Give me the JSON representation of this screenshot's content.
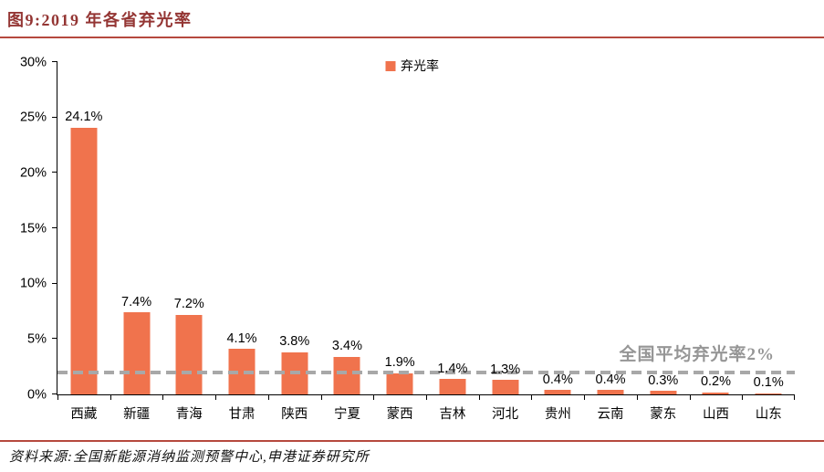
{
  "header": {
    "title": "图9:2019 年各省弃光率"
  },
  "chart_data": {
    "type": "bar",
    "title": "2019 年各省弃光率",
    "legend": "弃光率",
    "categories": [
      "西藏",
      "新疆",
      "青海",
      "甘肃",
      "陕西",
      "宁夏",
      "蒙西",
      "吉林",
      "河北",
      "贵州",
      "云南",
      "蒙东",
      "山西",
      "山东"
    ],
    "values": [
      24.1,
      7.4,
      7.2,
      4.1,
      3.8,
      3.4,
      1.9,
      1.4,
      1.3,
      0.4,
      0.4,
      0.3,
      0.2,
      0.1
    ],
    "value_labels": [
      "24.1%",
      "7.4%",
      "7.2%",
      "4.1%",
      "3.8%",
      "3.4%",
      "1.9%",
      "1.4%",
      "1.3%",
      "0.4%",
      "0.4%",
      "0.3%",
      "0.2%",
      "0.1%"
    ],
    "xlabel": "",
    "ylabel": "",
    "ylim": [
      0,
      30
    ],
    "ytick_labels": [
      "0%",
      "5%",
      "10%",
      "15%",
      "20%",
      "25%",
      "30%"
    ],
    "grid": false,
    "legend_position": "top-center",
    "average_line": {
      "value": 2,
      "label": "全国平均弃光率2%"
    }
  },
  "colors": {
    "title": "#943634",
    "rule": "#B6493E",
    "bar": "#F0734D",
    "avg-line": "#A8A8A8",
    "annotation": "#969696",
    "axis": "#000000"
  },
  "footer": {
    "source": "资料来源:全国新能源消纳监测预警中心,申港证券研究所"
  }
}
